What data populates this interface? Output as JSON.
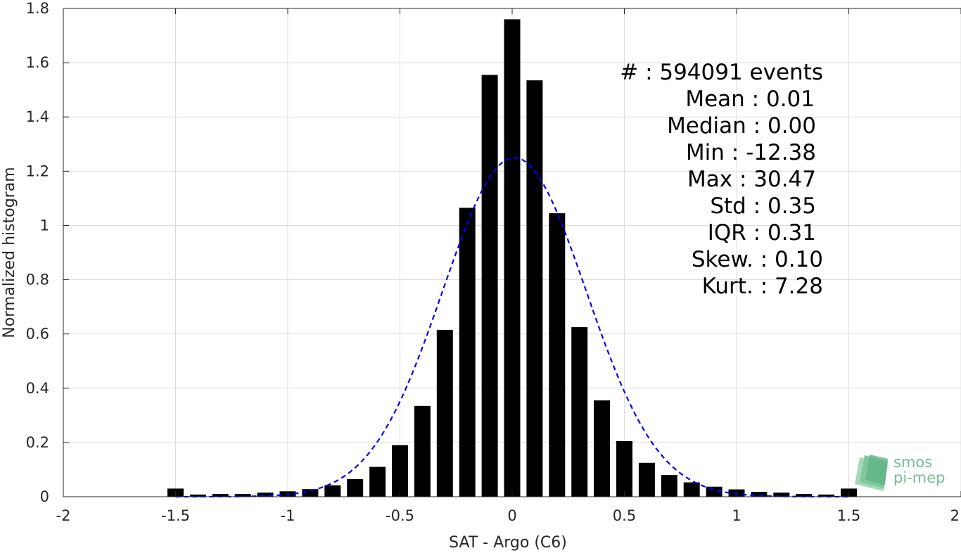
{
  "chart_data": {
    "type": "bar",
    "xlabel": "SAT - Argo (C6)",
    "ylabel": "Normalized histogram",
    "xlim": [
      -2,
      2
    ],
    "ylim": [
      0,
      1.8
    ],
    "xticks": [
      -2,
      -1.5,
      -1,
      -0.5,
      0,
      0.5,
      1,
      1.5,
      2
    ],
    "xtick_labels": [
      "-2",
      "-1.5",
      "-1",
      "-0.5",
      "0",
      "0.5",
      "1",
      "1.5",
      "2"
    ],
    "yticks": [
      0,
      0.2,
      0.4,
      0.6,
      0.8,
      1,
      1.2,
      1.4,
      1.6,
      1.8
    ],
    "ytick_labels": [
      "0",
      "0.2",
      "0.4",
      "0.6",
      "0.8",
      "1",
      "1.2",
      "1.4",
      "1.6",
      "1.8"
    ],
    "grid": true,
    "bar_color": "#000000",
    "bars": {
      "x": [
        -1.5,
        -1.4,
        -1.3,
        -1.2,
        -1.1,
        -1.0,
        -0.9,
        -0.8,
        -0.7,
        -0.6,
        -0.5,
        -0.4,
        -0.3,
        -0.2,
        -0.1,
        0.0,
        0.1,
        0.2,
        0.3,
        0.4,
        0.5,
        0.6,
        0.7,
        0.8,
        0.9,
        1.0,
        1.1,
        1.2,
        1.3,
        1.4,
        1.5
      ],
      "values": [
        0.03,
        0.008,
        0.01,
        0.01,
        0.015,
        0.02,
        0.028,
        0.042,
        0.065,
        0.11,
        0.19,
        0.335,
        0.615,
        1.065,
        1.555,
        1.76,
        1.535,
        1.045,
        0.625,
        0.355,
        0.205,
        0.125,
        0.08,
        0.053,
        0.037,
        0.027,
        0.018,
        0.015,
        0.01,
        0.008,
        0.03
      ]
    },
    "fit": {
      "name": "normal fit",
      "style": "dashed",
      "color": "#0000ff",
      "mean": 0.01,
      "std": 0.32,
      "x_range": [
        -1.5,
        1.5
      ]
    },
    "stats_lines": [
      "#  : 594091 events",
      "Mean : 0.01",
      "Median : 0.00",
      "Min : -12.38",
      "Max : 30.47",
      "Std : 0.35",
      "IQR : 0.31",
      "Skew. : 0.10",
      "Kurt. : 7.28"
    ]
  },
  "logo": {
    "line1": "smos",
    "line2": "pi-mep",
    "color": "#6fc093"
  }
}
